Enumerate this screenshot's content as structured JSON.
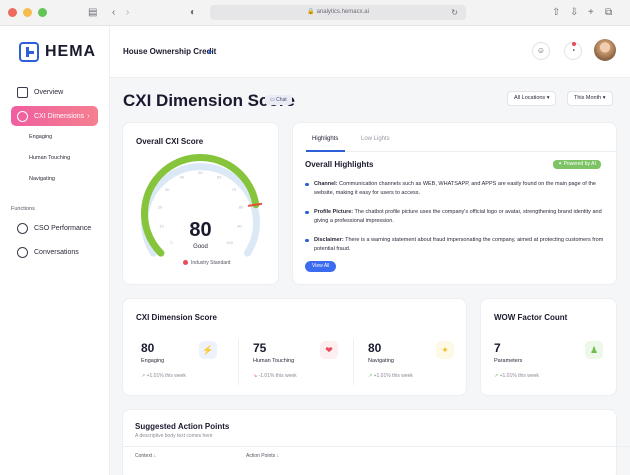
{
  "browser": {
    "url": "analytics.hemacx.ai",
    "dots": [
      "#ee6a5e",
      "#f5bd4f",
      "#61c454"
    ]
  },
  "sidebar": {
    "logo": "HEMA",
    "nav": [
      {
        "label": "Overview",
        "icon": "home-icon"
      },
      {
        "label": "CXI Dimensions",
        "icon": "layers-icon",
        "active": true,
        "arrow": "›"
      }
    ],
    "subnav": [
      "Engaging",
      "Human Touching",
      "Navigating"
    ],
    "section": "Functions",
    "functions": [
      {
        "label": "CSO Performance",
        "icon": "users-icon"
      },
      {
        "label": "Conversations",
        "icon": "chat-icon"
      }
    ]
  },
  "header": {
    "project": "House Ownership Credit",
    "project_icon": "send-icon"
  },
  "page": {
    "title": "CXI Dimension Score",
    "chat_badge": "Chat",
    "location_dropdown": "All Locations",
    "period_dropdown": "This Month"
  },
  "overall": {
    "title": "Overall CXI Score",
    "score": "80",
    "score_value": 80,
    "rating": "Good",
    "industry_label": "Industry Standard",
    "ticks": [
      "0",
      "10",
      "20",
      "30",
      "40",
      "50",
      "60",
      "70",
      "80",
      "90",
      "100"
    ]
  },
  "highlights": {
    "tabs": [
      "Highlights",
      "Low Lights"
    ],
    "title": "Overall Highlights",
    "badge": "Powered by AI",
    "items": [
      {
        "label": "Channel:",
        "text": " Communication channels such as WEB, WHATSAPP, and APPS are easily found on the main page of the website, making it easy for users to access."
      },
      {
        "label": "Profile Picture:",
        "text": " The chatbot profile picture uses the company's official logo or avatar, strengthening brand identity and giving a professional impression."
      },
      {
        "label": "Disclaimer:",
        "text": " There is a warning statement about fraud impersonating the company, aimed at protecting customers from potential fraud."
      }
    ],
    "view_all": "View All"
  },
  "dimension": {
    "title": "CXI Dimension Score",
    "metrics": [
      {
        "value": "80",
        "label": "Engaging",
        "trend": "+1.01% this week",
        "dir": "up",
        "icon": "bolt-icon",
        "glyph": "⚡",
        "color": "#3b6cf0",
        "bg": "#eef2fd"
      },
      {
        "value": "75",
        "label": "Human Touching",
        "trend": "-1.01% this week",
        "dir": "down",
        "icon": "heart-icon",
        "glyph": "❤",
        "color": "#e84c5a",
        "bg": "#fdeef0"
      },
      {
        "value": "80",
        "label": "Navigating",
        "trend": "+1.01% this week",
        "dir": "up",
        "icon": "compass-icon",
        "glyph": "✦",
        "color": "#f2c12e",
        "bg": "#fef8e6"
      }
    ]
  },
  "wow": {
    "title": "WOW Factor Count",
    "value": "7",
    "label": "Parameters",
    "trend": "+1.01% this week",
    "icon": "person-icon",
    "glyph": "♟",
    "color": "#6cbf4f",
    "bg": "#eef8ea"
  },
  "actions": {
    "title": "Suggested Action Points",
    "subtitle": "A descriptive body text comes here",
    "columns": [
      "Context ↓",
      "Action Points ↓"
    ]
  }
}
